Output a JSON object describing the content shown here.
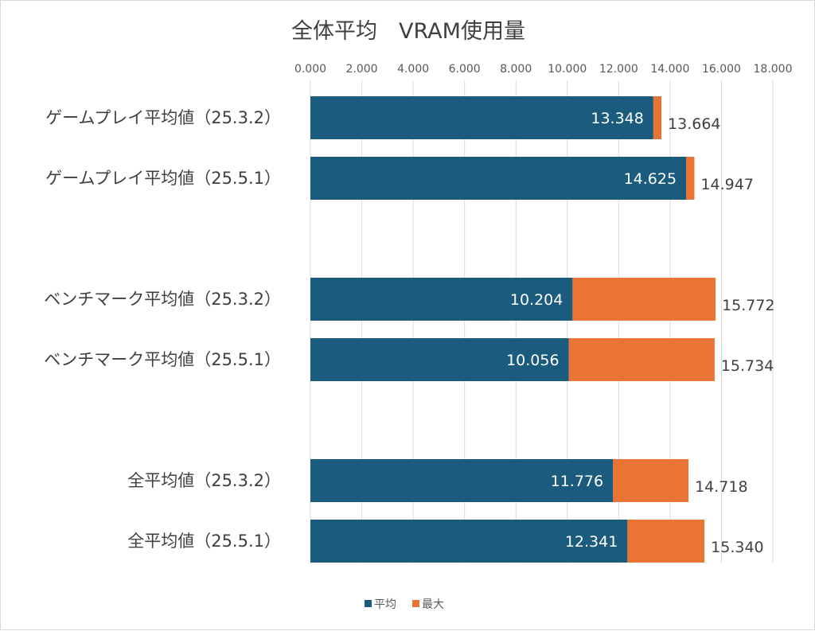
{
  "chart_data": {
    "type": "bar",
    "orientation": "horizontal",
    "stacked_overlay": true,
    "title": "全体平均　VRAM使用量",
    "xlabel": "",
    "ylabel": "",
    "xlim": [
      0,
      18
    ],
    "x_ticks": [
      "0.000",
      "2.000",
      "4.000",
      "6.000",
      "8.000",
      "10.000",
      "12.000",
      "14.000",
      "16.000",
      "18.000"
    ],
    "x_axis_position": "top",
    "grid": true,
    "legend_position": "bottom",
    "categories": [
      "ゲームプレイ平均値（25.3.2）",
      "ゲームプレイ平均値（25.5.1）",
      "ベンチマーク平均値（25.3.2）",
      "ベンチマーク平均値（25.5.1）",
      "全平均値（25.3.2）",
      "全平均値（25.5.1）"
    ],
    "groups": [
      [
        0,
        1
      ],
      [
        2,
        3
      ],
      [
        4,
        5
      ]
    ],
    "series": [
      {
        "name": "平均",
        "color": "#1a5b7e",
        "values": [
          13.348,
          14.625,
          10.204,
          10.056,
          11.776,
          12.341
        ],
        "labels": [
          "13.348",
          "14.625",
          "10.204",
          "10.056",
          "11.776",
          "12.341"
        ]
      },
      {
        "name": "最大",
        "color": "#ea7433",
        "values": [
          13.664,
          14.947,
          15.772,
          15.734,
          14.718,
          15.34
        ],
        "labels": [
          "13.664",
          "14.947",
          "15.772",
          "15.734",
          "14.718",
          "15.340"
        ]
      }
    ]
  }
}
